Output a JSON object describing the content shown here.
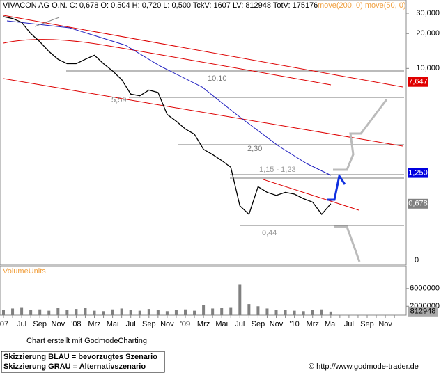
{
  "chart_data": {
    "type": "line",
    "header": "VIVACON AG O.N. C: 0,678 O: 0,504 H: 0,720 L: 0,500 TckV: 1607 LV: 812948 TotV: 175176",
    "indicators": "move(200, 0) move(50, 0)",
    "categories": [
      "'07",
      null,
      "Jul",
      null,
      "Sep",
      null,
      "Nov",
      null,
      "'08",
      null,
      "Mrz",
      null,
      "Mai",
      null,
      "Jul",
      null,
      "Sep",
      null,
      "Nov",
      null,
      "'09",
      null,
      "Mrz",
      null,
      "Mai",
      null,
      "Jul",
      null,
      "Sep",
      null,
      "Nov",
      null,
      "'10",
      null,
      "Mrz",
      null,
      "Mai",
      null,
      "Jul",
      null,
      "Sep",
      null,
      "Nov",
      null
    ],
    "series": [
      {
        "color": "#000000",
        "values": [
          28,
          27,
          25,
          20,
          17,
          14,
          12,
          11,
          11,
          12,
          13,
          11,
          9.5,
          8,
          6,
          5.8,
          6.5,
          6.2,
          4,
          3.5,
          3,
          2.7,
          2,
          1.8,
          1.6,
          1.4,
          0.65,
          0.55,
          0.95,
          0.85,
          0.8,
          0.85,
          0.82,
          0.75,
          0.7,
          0.55,
          0.678,
          null,
          null,
          null,
          null,
          null,
          null,
          null
        ]
      }
    ],
    "log_scale": true,
    "ylim": [
      0.2,
      39
    ],
    "yticks": [
      {
        "value": 30,
        "label": "30,000"
      },
      {
        "value": 20,
        "label": "20,000"
      },
      {
        "value": 10,
        "label": "10,000"
      }
    ],
    "bottom_tick": "0",
    "markers": [
      {
        "value": 7.647,
        "label": "7,647",
        "color": "#e00000"
      },
      {
        "value": 1.25,
        "label": "1,250",
        "color": "#0000e0"
      },
      {
        "value": 0.678,
        "label": "0,678",
        "color": "#808080"
      }
    ],
    "annotations": [
      "10,10",
      "5,59",
      "2,30",
      "1,15 - 1,23",
      "0,44"
    ],
    "volume": {
      "name": "VolumeUnits",
      "color": "#808080",
      "values": [
        1200000,
        1500000,
        1800000,
        1100000,
        1300000,
        1000000,
        1600000,
        1200000,
        1400000,
        1700000,
        1000000,
        900000,
        1300000,
        1500000,
        1100000,
        1000000,
        1400000,
        1200000,
        900000,
        1100000,
        1300000,
        1000000,
        2200000,
        1500000,
        1700000,
        1800000,
        7000000,
        2500000,
        2000000,
        1500000,
        1200000,
        1100000,
        1000000,
        900000,
        1100000,
        1300000,
        812948,
        null,
        null,
        null,
        null,
        null,
        null,
        null
      ],
      "ylim": [
        0,
        11000000
      ],
      "yticks": [
        2000000,
        6000000
      ],
      "last": 812948
    },
    "credit": "Chart erstellt mit GodmodeCharting",
    "notes": [
      "Skizzierung BLAU = bevorzugtes Szenario",
      "Skizzierung GRAU = Alternativszenario"
    ],
    "source": "© http://www.godmode-trader.de"
  }
}
